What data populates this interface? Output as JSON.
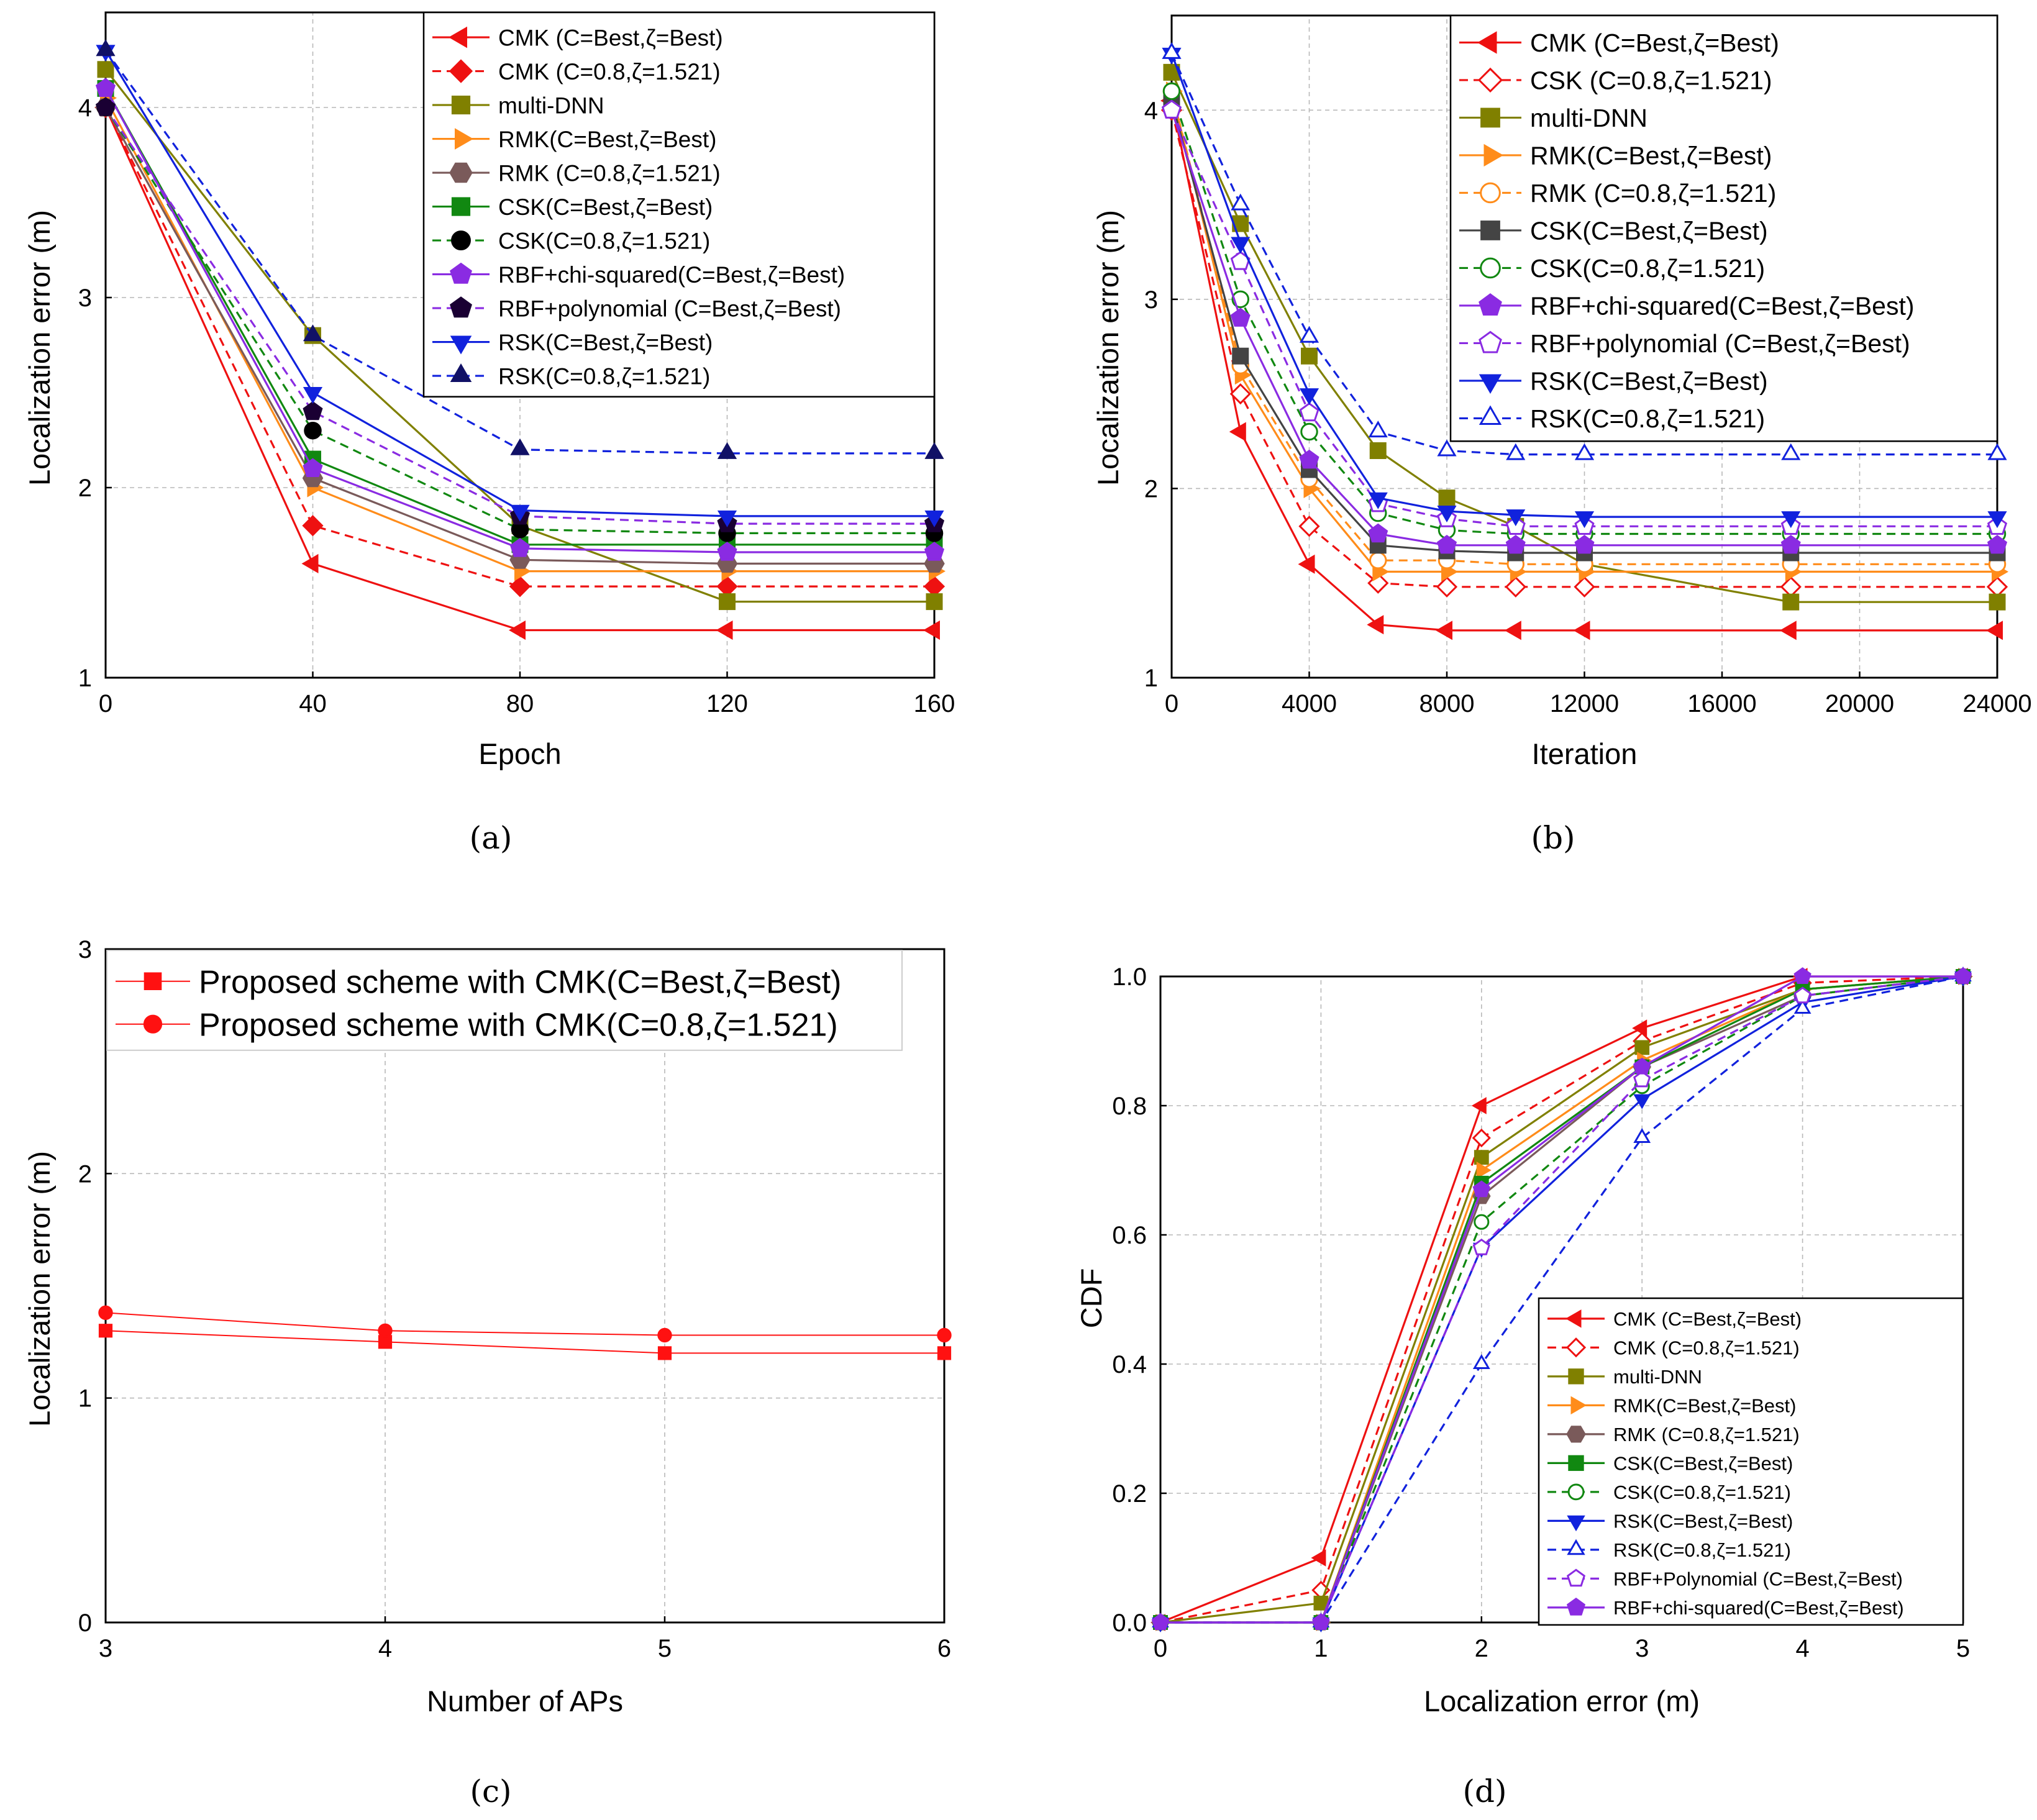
{
  "figure": {
    "captions": [
      "(a)",
      "(b)",
      "(c)",
      "(d)"
    ]
  },
  "chart_data": [
    {
      "id": "a",
      "type": "line",
      "title": "",
      "xlabel": "Epoch",
      "ylabel": "Localization error (m)",
      "xlim": [
        0,
        160
      ],
      "ylim": [
        1,
        4.5
      ],
      "xticks": [
        0,
        40,
        80,
        120,
        160
      ],
      "yticks": [
        1,
        2,
        3,
        4
      ],
      "grid": true,
      "legend_position": "top-right",
      "x": [
        0,
        40,
        80,
        120,
        160
      ],
      "series": [
        {
          "name": "CMK (C=Best,ζ=Best)",
          "values": [
            4.0,
            1.6,
            1.25,
            1.25,
            1.25
          ],
          "color": "#ee1111",
          "dash": false,
          "marker": "tri-left",
          "fill": true
        },
        {
          "name": "CMK (C=0.8,ζ=1.521)",
          "values": [
            4.0,
            1.8,
            1.48,
            1.48,
            1.48
          ],
          "color": "#ee1111",
          "dash": true,
          "marker": "diamond",
          "fill": true
        },
        {
          "name": "multi-DNN",
          "values": [
            4.2,
            2.8,
            1.8,
            1.4,
            1.4
          ],
          "color": "#808000",
          "dash": false,
          "marker": "square",
          "fill": true
        },
        {
          "name": "RMK(C=Best,ζ=Best)",
          "values": [
            4.05,
            2.0,
            1.56,
            1.56,
            1.56
          ],
          "color": "#ff8c1a",
          "dash": false,
          "marker": "tri-right",
          "fill": true
        },
        {
          "name": "RMK (C=0.8,ζ=1.521)",
          "values": [
            4.0,
            2.05,
            1.62,
            1.6,
            1.6
          ],
          "color": "#7a5a5a",
          "dash": false,
          "marker": "hexagon",
          "fill": true
        },
        {
          "name": "CSK(C=Best,ζ=Best)",
          "values": [
            4.1,
            2.15,
            1.7,
            1.7,
            1.7
          ],
          "color": "#118811",
          "dash": false,
          "marker": "square",
          "fill": true
        },
        {
          "name": "CSK(C=0.8,ζ=1.521)",
          "values": [
            4.0,
            2.3,
            1.78,
            1.76,
            1.76
          ],
          "color": "#118811",
          "dash": true,
          "marker": "circle",
          "fill": true,
          "markerColor": "#000000"
        },
        {
          "name": "RBF+chi-squared(C=Best,ζ=Best)",
          "values": [
            4.1,
            2.1,
            1.68,
            1.66,
            1.66
          ],
          "color": "#8a2be2",
          "dash": false,
          "marker": "pentagon",
          "fill": true
        },
        {
          "name": "RBF+polynomial (C=Best,ζ=Best)",
          "values": [
            4.0,
            2.4,
            1.85,
            1.81,
            1.81
          ],
          "color": "#8a2be2",
          "dash": true,
          "marker": "pentagon",
          "fill": true,
          "markerColor": "#1a0033"
        },
        {
          "name": "RSK(C=Best,ζ=Best)",
          "values": [
            4.3,
            2.5,
            1.88,
            1.85,
            1.85
          ],
          "color": "#1122dd",
          "dash": false,
          "marker": "tri-down",
          "fill": true
        },
        {
          "name": "RSK(C=0.8,ζ=1.521)",
          "values": [
            4.3,
            2.8,
            2.2,
            2.18,
            2.18
          ],
          "color": "#1122dd",
          "dash": true,
          "marker": "tri-up",
          "fill": true,
          "markerColor": "#111166"
        }
      ]
    },
    {
      "id": "b",
      "type": "line",
      "title": "",
      "xlabel": "Iteration",
      "ylabel": "Localization error (m)",
      "xlim": [
        0,
        24000
      ],
      "ylim": [
        1,
        4.5
      ],
      "xticks": [
        0,
        4000,
        8000,
        12000,
        16000,
        20000,
        24000
      ],
      "yticks": [
        1,
        2,
        3,
        4
      ],
      "grid": true,
      "legend_position": "top-right",
      "x": [
        0,
        2000,
        4000,
        6000,
        8000,
        10000,
        12000,
        18000,
        24000
      ],
      "series": [
        {
          "name": "CMK (C=Best,ζ=Best)",
          "values": [
            4.05,
            2.3,
            1.6,
            1.28,
            1.25,
            1.25,
            1.25,
            1.25,
            1.25
          ],
          "color": "#ee1111",
          "dash": false,
          "marker": "tri-left",
          "fill": true
        },
        {
          "name": "CSK (C=0.8,ζ=1.521)",
          "values": [
            4.0,
            2.5,
            1.8,
            1.5,
            1.48,
            1.48,
            1.48,
            1.48,
            1.48
          ],
          "color": "#ee1111",
          "dash": true,
          "marker": "diamond",
          "fill": false
        },
        {
          "name": "multi-DNN",
          "values": [
            4.2,
            3.4,
            2.7,
            2.2,
            1.95,
            1.8,
            1.6,
            1.4,
            1.4
          ],
          "color": "#808000",
          "dash": false,
          "marker": "square",
          "fill": true
        },
        {
          "name": "RMK(C=Best,ζ=Best)",
          "values": [
            4.1,
            2.6,
            2.0,
            1.56,
            1.56,
            1.56,
            1.56,
            1.56,
            1.56
          ],
          "color": "#ff8c1a",
          "dash": false,
          "marker": "tri-right",
          "fill": true
        },
        {
          "name": "RMK (C=0.8,ζ=1.521)",
          "values": [
            4.1,
            2.65,
            2.05,
            1.62,
            1.62,
            1.6,
            1.6,
            1.6,
            1.6
          ],
          "color": "#ff8c1a",
          "dash": true,
          "marker": "circle",
          "fill": false
        },
        {
          "name": "CSK(C=Best,ζ=Best)",
          "values": [
            4.05,
            2.7,
            2.1,
            1.7,
            1.67,
            1.66,
            1.66,
            1.66,
            1.66
          ],
          "color": "#444444",
          "dash": false,
          "marker": "square",
          "fill": true
        },
        {
          "name": "CSK(C=0.8,ζ=1.521)",
          "values": [
            4.1,
            3.0,
            2.3,
            1.87,
            1.78,
            1.76,
            1.76,
            1.76,
            1.76
          ],
          "color": "#118811",
          "dash": true,
          "marker": "circle",
          "fill": false
        },
        {
          "name": "RBF+chi-squared(C=Best,ζ=Best)",
          "values": [
            4.0,
            2.9,
            2.15,
            1.76,
            1.7,
            1.7,
            1.7,
            1.7,
            1.7
          ],
          "color": "#8a2be2",
          "dash": false,
          "marker": "pentagon",
          "fill": true
        },
        {
          "name": "RBF+polynomial (C=Best,ζ=Best)",
          "values": [
            4.0,
            3.2,
            2.4,
            1.92,
            1.84,
            1.8,
            1.8,
            1.8,
            1.8
          ],
          "color": "#8a2be2",
          "dash": true,
          "marker": "pentagon",
          "fill": false
        },
        {
          "name": "RSK(C=Best,ζ=Best)",
          "values": [
            4.3,
            3.3,
            2.5,
            1.95,
            1.88,
            1.86,
            1.85,
            1.85,
            1.85
          ],
          "color": "#1122dd",
          "dash": false,
          "marker": "tri-down",
          "fill": true
        },
        {
          "name": "RSK(C=0.8,ζ=1.521)",
          "values": [
            4.3,
            3.5,
            2.8,
            2.3,
            2.2,
            2.18,
            2.18,
            2.18,
            2.18
          ],
          "color": "#1122dd",
          "dash": true,
          "marker": "tri-up",
          "fill": false
        }
      ]
    },
    {
      "id": "c",
      "type": "line",
      "title": "",
      "xlabel": "Number of APs",
      "ylabel": "Localization error (m)",
      "xlim": [
        3,
        6
      ],
      "ylim": [
        0,
        3
      ],
      "xticks": [
        3,
        4,
        5,
        6
      ],
      "yticks": [
        0,
        1,
        2,
        3
      ],
      "grid": true,
      "legend_position": "top",
      "x": [
        3,
        4,
        5,
        6
      ],
      "series": [
        {
          "name": "Proposed scheme with CMK(C=Best,ζ=Best)",
          "values": [
            1.3,
            1.25,
            1.2,
            1.2
          ],
          "color": "#ff1111",
          "dash": false,
          "marker": "square",
          "fill": true,
          "thin": true
        },
        {
          "name": "Proposed scheme with CMK(C=0.8,ζ=1.521)",
          "values": [
            1.38,
            1.3,
            1.28,
            1.28
          ],
          "color": "#ff1111",
          "dash": false,
          "marker": "circle",
          "fill": true,
          "thin": true
        }
      ]
    },
    {
      "id": "d",
      "type": "line",
      "title": "",
      "xlabel": "Localization error (m)",
      "ylabel": "CDF",
      "xlim": [
        0,
        5
      ],
      "ylim": [
        0,
        1
      ],
      "xticks": [
        0,
        1,
        2,
        3,
        4,
        5
      ],
      "yticks": [
        0,
        0.2,
        0.4,
        0.6,
        0.8,
        1
      ],
      "ytick_labels": [
        "0.0",
        "0.2",
        "0.4",
        "0.6",
        "0.8",
        "1.0"
      ],
      "grid": true,
      "legend_position": "bottom-right",
      "x": [
        0,
        1,
        2,
        3,
        4,
        5
      ],
      "series": [
        {
          "name": "CMK (C=Best,ζ=Best)",
          "values": [
            0,
            0.1,
            0.8,
            0.92,
            1.0,
            1.0
          ],
          "color": "#ee1111",
          "dash": false,
          "marker": "tri-left",
          "fill": true
        },
        {
          "name": "CMK (C=0.8,ζ=1.521)",
          "values": [
            0,
            0.05,
            0.75,
            0.9,
            0.99,
            1.0
          ],
          "color": "#ee1111",
          "dash": true,
          "marker": "diamond",
          "fill": false
        },
        {
          "name": "multi-DNN",
          "values": [
            0,
            0.03,
            0.72,
            0.89,
            0.98,
            1.0
          ],
          "color": "#808000",
          "dash": false,
          "marker": "square",
          "fill": true
        },
        {
          "name": "RMK(C=Best,ζ=Best)",
          "values": [
            0,
            0.0,
            0.7,
            0.87,
            0.98,
            1.0
          ],
          "color": "#ff8c1a",
          "dash": false,
          "marker": "tri-right",
          "fill": true
        },
        {
          "name": "RMK (C=0.8,ζ=1.521)",
          "values": [
            0,
            0.0,
            0.66,
            0.86,
            0.97,
            1.0
          ],
          "color": "#7a5a5a",
          "dash": false,
          "marker": "hexagon",
          "fill": true
        },
        {
          "name": "CSK(C=Best,ζ=Best)",
          "values": [
            0,
            0.0,
            0.68,
            0.86,
            0.98,
            1.0
          ],
          "color": "#118811",
          "dash": false,
          "marker": "square",
          "fill": true
        },
        {
          "name": "CSK(C=0.8,ζ=1.521)",
          "values": [
            0,
            0.0,
            0.62,
            0.83,
            0.97,
            1.0
          ],
          "color": "#118811",
          "dash": true,
          "marker": "circle",
          "fill": false
        },
        {
          "name": "RSK(C=Best,ζ=Best)",
          "values": [
            0,
            0.0,
            0.58,
            0.81,
            0.96,
            1.0
          ],
          "color": "#1122dd",
          "dash": false,
          "marker": "tri-down",
          "fill": true
        },
        {
          "name": "RSK(C=0.8,ζ=1.521)",
          "values": [
            0,
            0.0,
            0.4,
            0.75,
            0.95,
            1.0
          ],
          "color": "#1122dd",
          "dash": true,
          "marker": "tri-up",
          "fill": false
        },
        {
          "name": "RBF+Polynomial (C=Best,ζ=Best)",
          "values": [
            0,
            0.0,
            0.58,
            0.84,
            0.97,
            1.0
          ],
          "color": "#8a2be2",
          "dash": true,
          "marker": "pentagon",
          "fill": false
        },
        {
          "name": "RBF+chi-squared(C=Best,ζ=Best)",
          "values": [
            0,
            0.0,
            0.67,
            0.86,
            1.0,
            1.0
          ],
          "color": "#8a2be2",
          "dash": false,
          "marker": "pentagon",
          "fill": true
        }
      ]
    }
  ]
}
